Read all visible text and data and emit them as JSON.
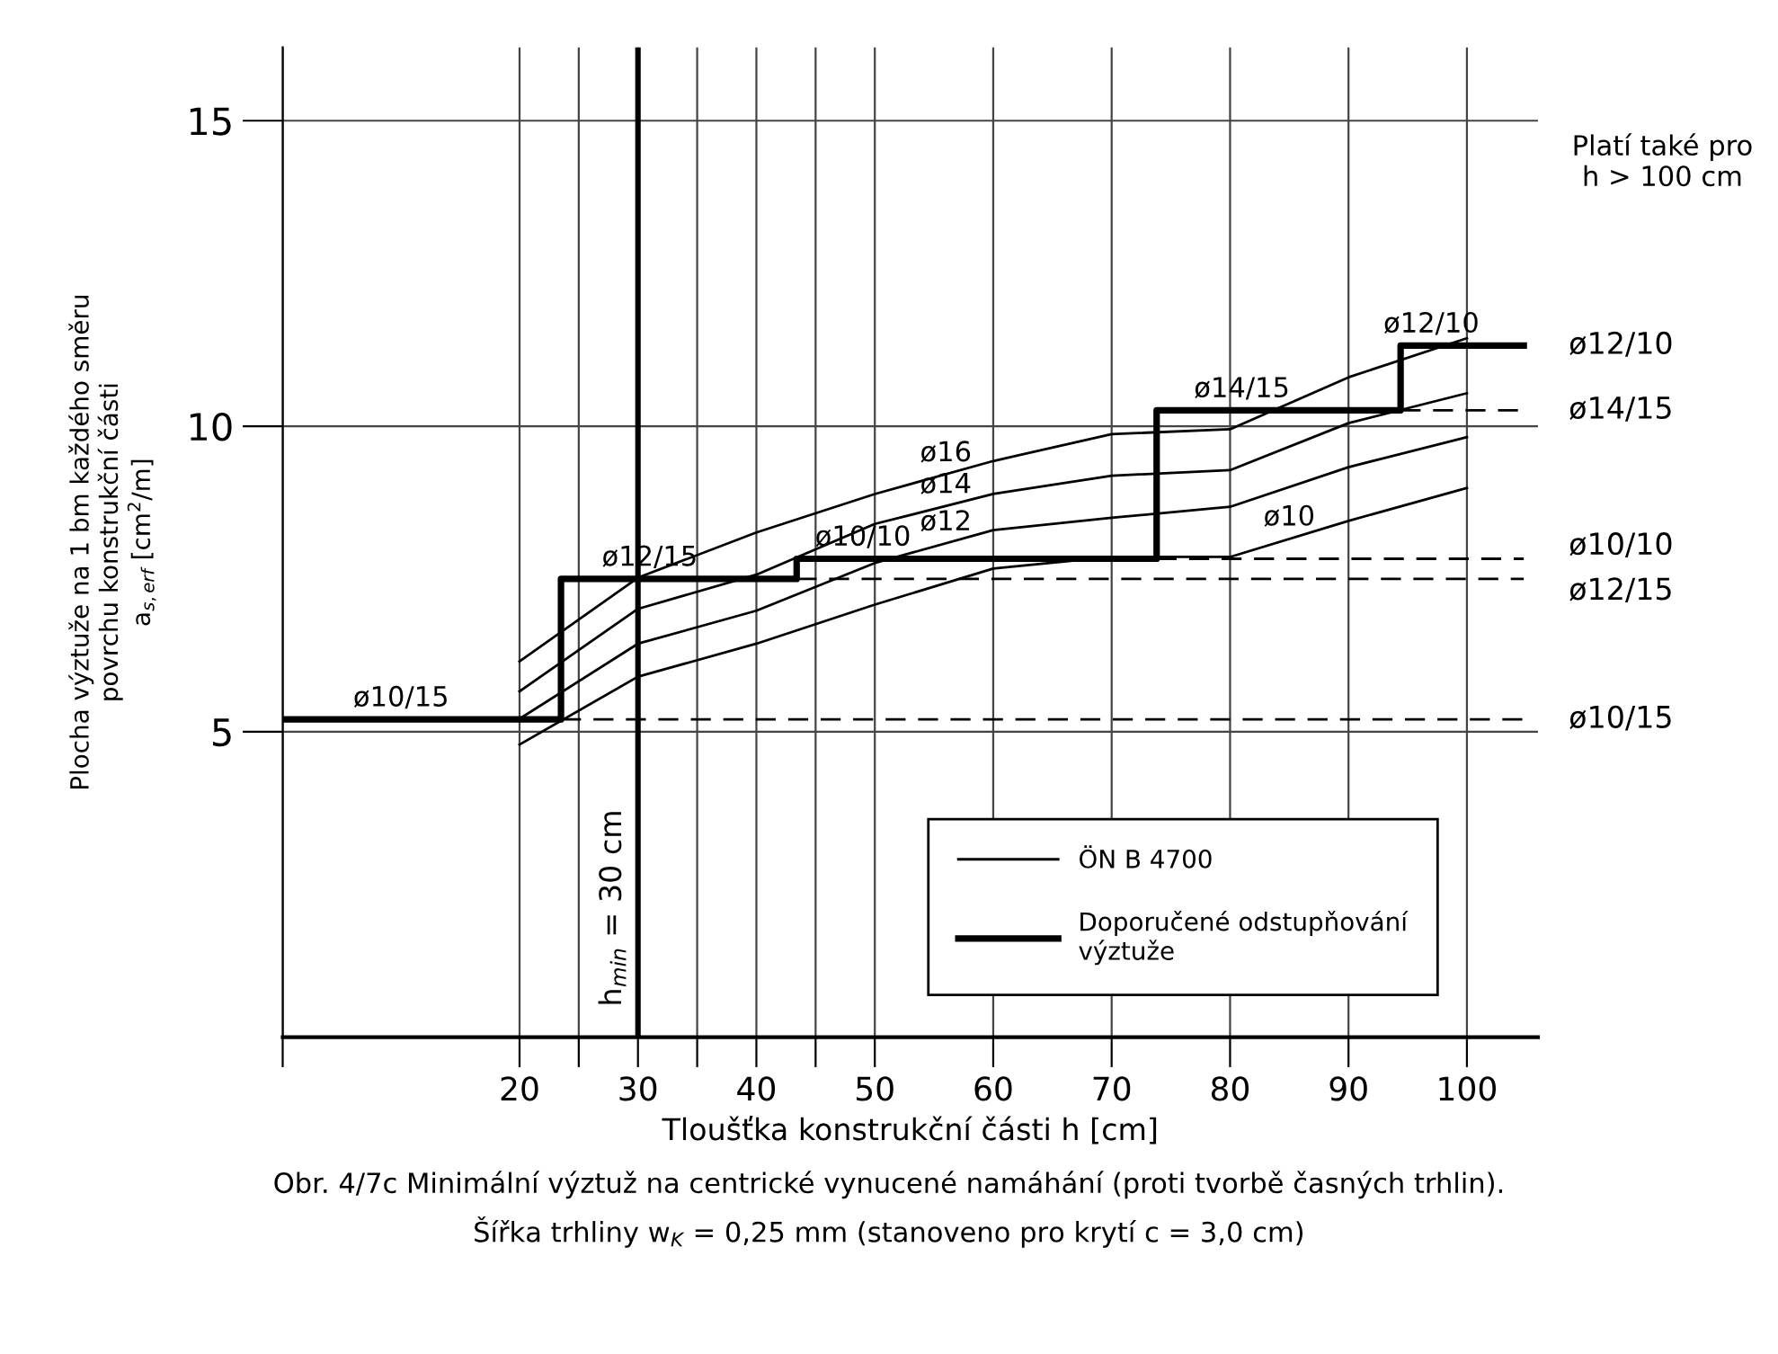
{
  "chart_data": {
    "type": "line",
    "xlabel": "Tloušťka konstrukční části h [cm]",
    "ylabel": "Plocha výztuže na 1 bm každého směru\npovrchu konstrukční části\na$_{s,erf}$ [cm$^{2}$/m]",
    "xlim": [
      0,
      106
    ],
    "ylim": [
      0,
      16.2
    ],
    "xticks": [
      {
        "value": 0,
        "label": null
      },
      20,
      {
        "value": 25,
        "label": null
      },
      30,
      {
        "value": 35,
        "label": null
      },
      40,
      {
        "value": 45,
        "label": null
      },
      50,
      60,
      70,
      80,
      90,
      100
    ],
    "yticks": [
      5,
      10,
      15
    ],
    "grid": true,
    "legend": "bottom right",
    "series": [
      {
        "name": "ÖN B 4700",
        "color": "#000000",
        "x": [
          20,
          30,
          40,
          50,
          60,
          70,
          80,
          90,
          100
        ],
        "values": [
          6.15,
          7.52,
          8.26,
          8.89,
          9.43,
          9.87,
          9.95,
          10.8,
          11.44
        ]
      },
      {
        "color": "#000000",
        "x": [
          20,
          30,
          40,
          50,
          60,
          70,
          80,
          90,
          100
        ],
        "values": [
          5.66,
          7.01,
          7.57,
          8.4,
          8.89,
          9.19,
          9.28,
          10.05,
          10.54
        ]
      },
      {
        "color": "#000000",
        "x": [
          20,
          30,
          40,
          50,
          60,
          70,
          80,
          90,
          100
        ],
        "values": [
          5.21,
          6.44,
          6.98,
          7.76,
          8.3,
          8.5,
          8.68,
          9.33,
          9.82
        ]
      },
      {
        "color": "#000000",
        "x": [
          20,
          30,
          40,
          50,
          60,
          70,
          80,
          90,
          100
        ],
        "values": [
          4.79,
          5.9,
          6.44,
          7.08,
          7.67,
          7.86,
          7.86,
          8.45,
          8.99
        ]
      },
      {
        "name": "Doporučené odstupňování\nvýztuže",
        "type": "step",
        "color": "#000000",
        "x": [
          0,
          23.5,
          43.4,
          73.8,
          94.4,
          104.8
        ],
        "values": [
          5.2,
          7.5,
          7.83,
          10.26,
          11.32,
          11.32
        ]
      },
      {
        "color": "#000000",
        "line_style": "dashed",
        "x": [
          23.5,
          104.8
        ],
        "values": [
          5.2,
          5.2
        ]
      },
      {
        "color": "#000000",
        "line_style": "dashed",
        "x": [
          43.4,
          104.8
        ],
        "values": [
          7.5,
          7.5
        ]
      },
      {
        "color": "#000000",
        "line_style": "dashed",
        "x": [
          73.8,
          104.8
        ],
        "values": [
          7.83,
          7.83
        ]
      },
      {
        "color": "#000000",
        "line_style": "dashed",
        "x": [
          94.4,
          104.8
        ],
        "values": [
          10.26,
          10.26
        ]
      }
    ],
    "ref_lines": [
      {
        "axis": "x",
        "value": 30,
        "label": "h$_{min}$ = 30 cm"
      }
    ],
    "annotations": [
      "Platí také pro\nh > 100 cm",
      "Obr. 4/7c Minimální výztuž na centrické vynucené namáhání (proti tvorbě časných trhlin).",
      "Šířka trhliny w$_{K}$ = 0,25 mm (stanoveno pro krytí c = 3,0 cm)",
      {
        "text": "ø10/15",
        "x": 10,
        "y": 5.2
      },
      {
        "text": "ø12/15",
        "x": 31,
        "y": 7.5
      },
      {
        "text": "ø10/10",
        "x": 49,
        "y": 7.83
      },
      {
        "text": "ø14/15",
        "x": 81,
        "y": 10.26
      },
      {
        "text": "ø12/10",
        "x": 97,
        "y": 11.32
      },
      {
        "text": "ø16",
        "x": 56,
        "y": 9.21
      },
      {
        "text": "ø14",
        "x": 56,
        "y": 8.69
      },
      {
        "text": "ø12",
        "x": 56,
        "y": 8.08
      },
      {
        "text": "ø10",
        "x": 85,
        "y": 8.16
      },
      {
        "text": "ø12/10",
        "x": 104.8,
        "y": 11.32
      },
      {
        "text": "ø14/15",
        "x": 104.8,
        "y": 10.26
      },
      {
        "text": "ø10/10",
        "x": 104.8,
        "y": 7.83
      },
      {
        "text": "ø12/15",
        "x": 104.8,
        "y": 7.5
      },
      {
        "text": "ø10/15",
        "x": 104.8,
        "y": 5.2
      }
    ]
  }
}
